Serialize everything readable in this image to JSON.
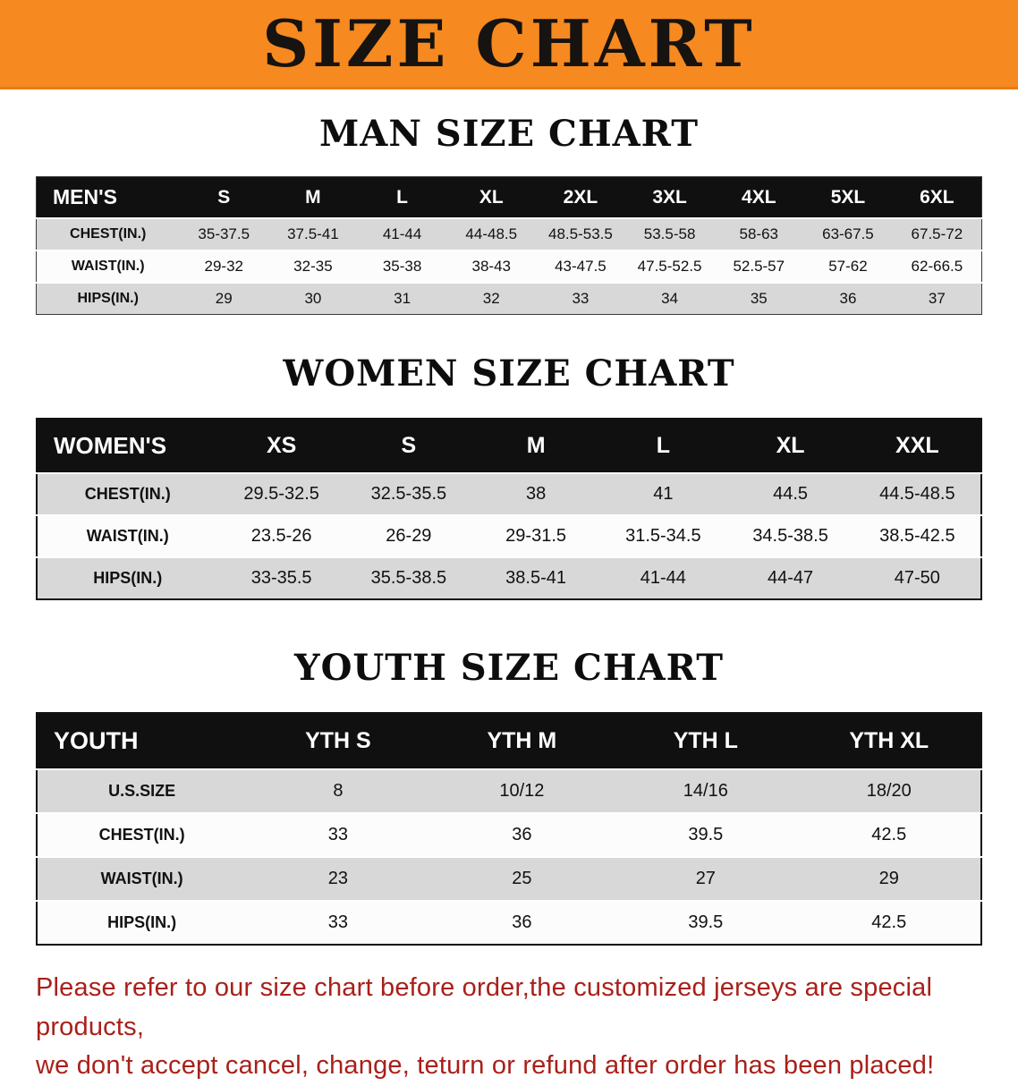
{
  "banner": {
    "title": "SIZE CHART"
  },
  "colors": {
    "banner_bg": "#f6891f",
    "table_header_bg": "#101010",
    "row_shaded": "#d8d8d8",
    "note_red": "#a9201a"
  },
  "sections": [
    {
      "id": "men",
      "heading": "MAN SIZE CHART",
      "table": {
        "header": [
          "MEN'S",
          "S",
          "M",
          "L",
          "XL",
          "2XL",
          "3XL",
          "4XL",
          "5XL",
          "6XL"
        ],
        "rows": [
          [
            "CHEST(IN.)",
            "35-37.5",
            "37.5-41",
            "41-44",
            "44-48.5",
            "48.5-53.5",
            "53.5-58",
            "58-63",
            "63-67.5",
            "67.5-72"
          ],
          [
            "WAIST(IN.)",
            "29-32",
            "32-35",
            "35-38",
            "38-43",
            "43-47.5",
            "47.5-52.5",
            "52.5-57",
            "57-62",
            "62-66.5"
          ],
          [
            "HIPS(IN.)",
            "29",
            "30",
            "31",
            "32",
            "33",
            "34",
            "35",
            "36",
            "37"
          ]
        ]
      }
    },
    {
      "id": "women",
      "heading": "WOMEN SIZE CHART",
      "table": {
        "header": [
          "WOMEN'S",
          "XS",
          "S",
          "M",
          "L",
          "XL",
          "XXL"
        ],
        "rows": [
          [
            "CHEST(IN.)",
            "29.5-32.5",
            "32.5-35.5",
            "38",
            "41",
            "44.5",
            "44.5-48.5"
          ],
          [
            "WAIST(IN.)",
            "23.5-26",
            "26-29",
            "29-31.5",
            "31.5-34.5",
            "34.5-38.5",
            "38.5-42.5"
          ],
          [
            "HIPS(IN.)",
            "33-35.5",
            "35.5-38.5",
            "38.5-41",
            "41-44",
            "44-47",
            "47-50"
          ]
        ]
      }
    },
    {
      "id": "youth",
      "heading": "YOUTH SIZE CHART",
      "table": {
        "header": [
          "YOUTH",
          "YTH S",
          "YTH M",
          "YTH L",
          "YTH XL"
        ],
        "rows": [
          [
            "U.S.SIZE",
            "8",
            "10/12",
            "14/16",
            "18/20"
          ],
          [
            "CHEST(IN.)",
            "33",
            "36",
            "39.5",
            "42.5"
          ],
          [
            "WAIST(IN.)",
            "23",
            "25",
            "27",
            "29"
          ],
          [
            "HIPS(IN.)",
            "33",
            "36",
            "39.5",
            "42.5"
          ]
        ]
      }
    }
  ],
  "note": {
    "line1": "Please refer to our size chart before order,the customized jerseys are special products,",
    "line2": "we don't accept cancel, change, teturn or refund after order has been placed!"
  }
}
